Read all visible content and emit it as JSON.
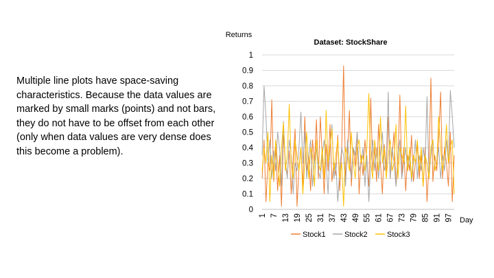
{
  "slide": {
    "body_text": "Multiple line plots have space-saving characteristics. Because the data values are marked by small marks (points) and not bars, they do not have to be offset from each other (only when data values are very dense does this become a problem)."
  },
  "chart_data": {
    "type": "line",
    "title": "Dataset: StockShare",
    "xlabel": "Day",
    "ylabel": "Returns",
    "ylim": [
      0,
      1
    ],
    "yticks": [
      0,
      0.1,
      0.2,
      0.3,
      0.4,
      0.5,
      0.6,
      0.7,
      0.8,
      0.9,
      1
    ],
    "xticks": [
      1,
      7,
      13,
      19,
      25,
      31,
      37,
      43,
      49,
      55,
      61,
      67,
      73,
      79,
      85,
      91,
      97
    ],
    "x": [
      1,
      2,
      3,
      4,
      5,
      6,
      7,
      8,
      9,
      10,
      11,
      12,
      13,
      14,
      15,
      16,
      17,
      18,
      19,
      20,
      21,
      22,
      23,
      24,
      25,
      26,
      27,
      28,
      29,
      30,
      31,
      32,
      33,
      34,
      35,
      36,
      37,
      38,
      39,
      40,
      41,
      42,
      43,
      44,
      45,
      46,
      47,
      48,
      49,
      50,
      51,
      52,
      53,
      54,
      55,
      56,
      57,
      58,
      59,
      60,
      61,
      62,
      63,
      64,
      65,
      66,
      67,
      68,
      69,
      70,
      71,
      72,
      73,
      74,
      75,
      76,
      77,
      78,
      79,
      80,
      81,
      82,
      83,
      84,
      85,
      86,
      87,
      88,
      89,
      90,
      91,
      92,
      93,
      94,
      95,
      96,
      97,
      98,
      99,
      100
    ],
    "grid": "horizontal",
    "legend_position": "bottom",
    "series": [
      {
        "name": "Stock1",
        "color": "#ED7D31",
        "values": [
          0.2,
          0.45,
          0.05,
          0.3,
          0.25,
          0.71,
          0.18,
          0.4,
          0.12,
          0.35,
          0.02,
          0.48,
          0.3,
          0.22,
          0.38,
          0.1,
          0.33,
          0.52,
          0.02,
          0.27,
          0.4,
          0.15,
          0.6,
          0.25,
          0.35,
          0.12,
          0.45,
          0.3,
          0.58,
          0.2,
          0.6,
          0.35,
          0.1,
          0.42,
          0.25,
          0.55,
          0.18,
          0.3,
          0.22,
          0.48,
          0.12,
          0.38,
          0.93,
          0.2,
          0.35,
          0.64,
          0.15,
          0.4,
          0.28,
          0.5,
          0.1,
          0.35,
          0.22,
          0.45,
          0.3,
          0.15,
          0.72,
          0.25,
          0.4,
          0.18,
          0.55,
          0.3,
          0.1,
          0.42,
          0.25,
          0.6,
          0.2,
          0.35,
          0.5,
          0.15,
          0.3,
          0.74,
          0.22,
          0.4,
          0.12,
          0.35,
          0.25,
          0.48,
          0.18,
          0.3,
          0.42,
          0.2,
          0.35,
          0.15,
          0.4,
          0.05,
          0.3,
          0.85,
          0.18,
          0.35,
          0.25,
          0.45,
          0.76,
          0.2,
          0.4,
          0.3,
          0.15,
          0.5,
          0.05,
          0.35
        ]
      },
      {
        "name": "Stock2",
        "color": "#A5A5A5",
        "values": [
          0.35,
          0.8,
          0.6,
          0.3,
          0.45,
          0.2,
          0.38,
          0.25,
          0.5,
          0.4,
          0.15,
          0.57,
          0.3,
          0.2,
          0.45,
          0.35,
          0.1,
          0.3,
          0.25,
          0.4,
          0.63,
          0.3,
          0.5,
          0.2,
          0.35,
          0.45,
          0.15,
          0.3,
          0.4,
          0.25,
          0.2,
          0.35,
          0.45,
          0.3,
          0.1,
          0.4,
          0.55,
          0.2,
          0.3,
          0.05,
          0.25,
          0.4,
          0.35,
          0.15,
          0.45,
          0.3,
          0.2,
          0.4,
          0.35,
          0.5,
          0.25,
          0.3,
          0.4,
          0.15,
          0.35,
          0.05,
          0.3,
          0.45,
          0.25,
          0.4,
          0.2,
          0.35,
          0.5,
          0.25,
          0.3,
          0.76,
          0.2,
          0.4,
          0.3,
          0.15,
          0.35,
          0.45,
          0.2,
          0.3,
          0.4,
          0.25,
          0.35,
          0.18,
          0.3,
          0.45,
          0.2,
          0.35,
          0.25,
          0.4,
          0.3,
          0.73,
          0.2,
          0.35,
          0.45,
          0.25,
          0.3,
          0.4,
          0.2,
          0.35,
          0.25,
          0.45,
          0.3,
          0.77,
          0.6,
          0.4
        ]
      },
      {
        "name": "Stock3",
        "color": "#FFC000",
        "values": [
          0.25,
          0.4,
          0.3,
          0.5,
          0.05,
          0.35,
          0.2,
          0.45,
          0.3,
          0.15,
          0.4,
          0.56,
          0.25,
          0.35,
          0.68,
          0.3,
          0.2,
          0.45,
          0.35,
          0.25,
          0.4,
          0.1,
          0.3,
          0.5,
          0.2,
          0.4,
          0.35,
          0.15,
          0.45,
          0.3,
          0.25,
          0.4,
          0.2,
          0.64,
          0.3,
          0.4,
          0.52,
          0.25,
          0.35,
          0.45,
          0.2,
          0.3,
          0.02,
          0.4,
          0.35,
          0.25,
          0.5,
          0.3,
          0.2,
          0.4,
          0.45,
          0.3,
          0.35,
          0.25,
          0.4,
          0.75,
          0.3,
          0.2,
          0.45,
          0.35,
          0.25,
          0.6,
          0.3,
          0.4,
          0.2,
          0.35,
          0.45,
          0.25,
          0.3,
          0.55,
          0.2,
          0.4,
          0.35,
          0.3,
          0.67,
          0.25,
          0.4,
          0.2,
          0.35,
          0.3,
          0.45,
          0.25,
          0.4,
          0.15,
          0.35,
          0.3,
          0.2,
          0.4,
          0.45,
          0.25,
          0.3,
          0.6,
          0.4,
          0.25,
          0.35,
          0.55,
          0.3,
          0.4,
          0.45,
          0.1
        ]
      }
    ]
  }
}
